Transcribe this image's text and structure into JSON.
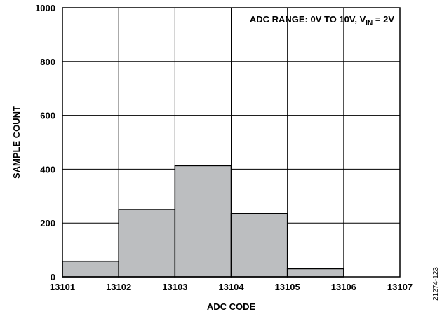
{
  "chart_data": {
    "type": "bar",
    "xlabel": "ADC CODE",
    "ylabel": "SAMPLE COUNT",
    "x_ticks": [
      "13101",
      "13102",
      "13103",
      "13104",
      "13105",
      "13106",
      "13107"
    ],
    "y_ticks": [
      "0",
      "200",
      "400",
      "600",
      "800",
      "1000"
    ],
    "xlim": [
      13101,
      13107
    ],
    "ylim": [
      0,
      1000
    ],
    "grid": true,
    "bins": [
      {
        "start": 13101,
        "end": 13102,
        "value": 58
      },
      {
        "start": 13102,
        "end": 13103,
        "value": 250
      },
      {
        "start": 13103,
        "end": 13104,
        "value": 413
      },
      {
        "start": 13104,
        "end": 13105,
        "value": 235
      },
      {
        "start": 13105,
        "end": 13106,
        "value": 30
      }
    ],
    "annotation": {
      "prefix": "ADC RANGE: 0V TO 10V, V",
      "subscript": "IN",
      "suffix": " = 2V"
    },
    "figure_id": "21274-123",
    "colors": {
      "bar_fill": "#bcbec0",
      "bar_stroke": "#000000",
      "grid": "#000000"
    }
  }
}
